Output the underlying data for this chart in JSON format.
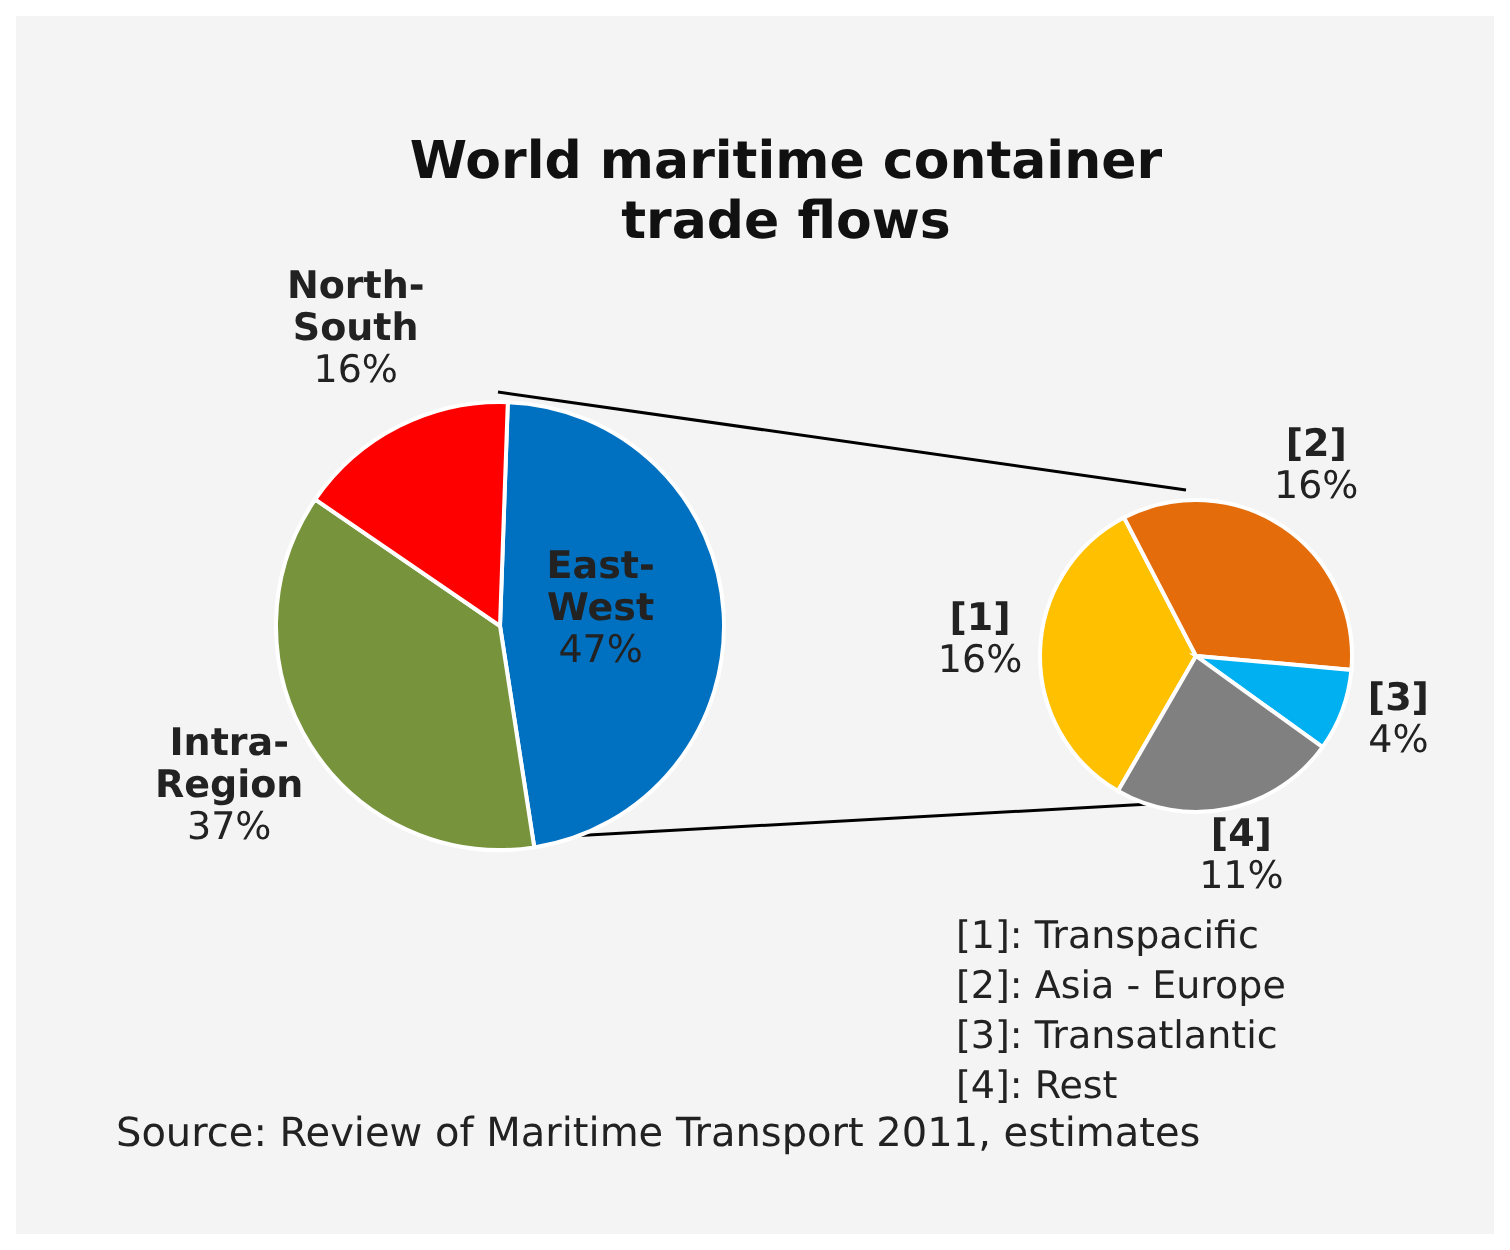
{
  "chart_data": [
    {
      "type": "pie",
      "title": "World maritime container trade flows",
      "categories": [
        "East-West",
        "Intra-Region",
        "North-South"
      ],
      "values": [
        47,
        37,
        16
      ],
      "colors": [
        "#0070c0",
        "#77933c",
        "#ff0000"
      ],
      "value_labels": [
        "47%",
        "37%",
        "16%"
      ],
      "annotations": [
        "Source: Review of Maritime Transport 2011, estimates"
      ]
    },
    {
      "type": "pie",
      "categories": [
        "[1]",
        "[2]",
        "[3]",
        "[4]"
      ],
      "values": [
        16,
        16,
        4,
        11
      ],
      "colors": [
        "#ffc000",
        "#e46c0a",
        "#00b0f0",
        "#808080"
      ],
      "value_labels": [
        "16%",
        "16%",
        "4%",
        "11%"
      ],
      "annotations": [
        "[1]: Transpacific",
        "[2]: Asia - Europe",
        "[3]: Transatlantic",
        "[4]: Rest"
      ]
    }
  ]
}
